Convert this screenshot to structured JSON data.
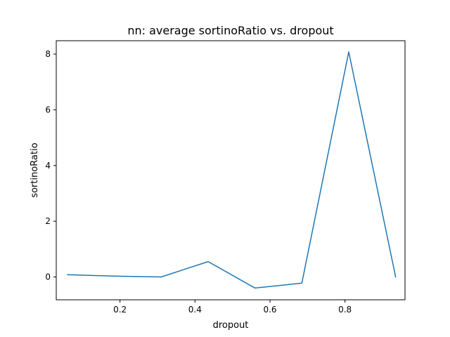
{
  "chart_data": {
    "type": "line",
    "title": "nn: average sortinoRatio vs. dropout",
    "xlabel": "dropout",
    "ylabel": "sortinoRatio",
    "xlim": [
      0.03,
      0.96
    ],
    "ylim": [
      -0.82,
      8.48
    ],
    "xticks": [
      0.2,
      0.4,
      0.6,
      0.8
    ],
    "xtick_labels": [
      "0.2",
      "0.4",
      "0.6",
      "0.8"
    ],
    "yticks": [
      0,
      2,
      4,
      6,
      8
    ],
    "ytick_labels": [
      "0",
      "2",
      "4",
      "6",
      "8"
    ],
    "grid": false,
    "series": [
      {
        "color": "#1f77b4",
        "x": [
          0.06,
          0.185,
          0.31,
          0.435,
          0.56,
          0.685,
          0.81,
          0.935
        ],
        "y": [
          0.08,
          0.03,
          0.0,
          0.55,
          -0.4,
          -0.22,
          8.08,
          0.0
        ]
      }
    ]
  }
}
